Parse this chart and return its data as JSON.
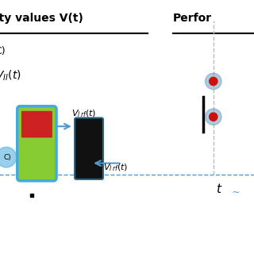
{
  "bg_color": "#ffffff",
  "title_left": "ity values V(t)",
  "title_right": "Perfor",
  "label_C": "C)",
  "label_VII": "$V_{II}(t)$",
  "label_Vlrf_top": "$V_{l\\,rf}(t)$",
  "label_Vlrf_bot": "$V_{l\\,rf}(t)$",
  "dashed_line_color": "#5599cc",
  "arrow_color": "#5599cc",
  "dot_color_outer": "#6699bb",
  "dot_color_inner": "#cc1111",
  "font_size_title": 10,
  "font_size_label": 9
}
